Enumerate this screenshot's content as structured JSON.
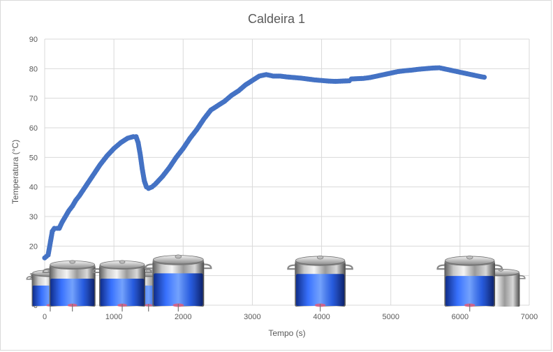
{
  "chart_data": {
    "type": "scatter",
    "title": "Caldeira 1",
    "xlabel": "Tempo (s)",
    "ylabel": "Temperatura (°C)",
    "xlim": [
      0,
      7000
    ],
    "ylim": [
      0,
      90
    ],
    "xticks": [
      "0",
      "1000",
      "2000",
      "3000",
      "4000",
      "5000",
      "6000",
      "7000"
    ],
    "yticks": [
      "0",
      "10",
      "20",
      "30",
      "40",
      "50",
      "60",
      "70",
      "80",
      "90"
    ],
    "grid": true,
    "legend": "none",
    "marker_color": "#4472c4",
    "series": [
      {
        "points": [
          [
            0,
            16
          ],
          [
            50,
            17
          ],
          [
            80,
            21
          ],
          [
            110,
            25
          ],
          [
            140,
            26
          ],
          [
            180,
            26
          ],
          [
            210,
            26
          ],
          [
            250,
            28
          ],
          [
            300,
            30
          ],
          [
            350,
            32
          ],
          [
            400,
            33.5
          ],
          [
            450,
            35.5
          ],
          [
            500,
            37
          ],
          [
            600,
            40.5
          ],
          [
            700,
            44
          ],
          [
            800,
            47.5
          ],
          [
            900,
            50.5
          ],
          [
            1000,
            53
          ],
          [
            1100,
            55
          ],
          [
            1200,
            56.5
          ],
          [
            1280,
            57
          ],
          [
            1320,
            57
          ],
          [
            1350,
            55
          ],
          [
            1380,
            51
          ],
          [
            1410,
            46
          ],
          [
            1440,
            42
          ],
          [
            1470,
            40
          ],
          [
            1500,
            39.5
          ],
          [
            1550,
            40
          ],
          [
            1600,
            41
          ],
          [
            1700,
            43.5
          ],
          [
            1800,
            46.5
          ],
          [
            1900,
            50
          ],
          [
            2000,
            53
          ],
          [
            2100,
            56.5
          ],
          [
            2200,
            59.5
          ],
          [
            2300,
            63
          ],
          [
            2400,
            66
          ],
          [
            2500,
            67.5
          ],
          [
            2600,
            69
          ],
          [
            2700,
            71
          ],
          [
            2800,
            72.5
          ],
          [
            2900,
            74.5
          ],
          [
            3000,
            76
          ],
          [
            3100,
            77.5
          ],
          [
            3200,
            78
          ],
          [
            3300,
            77.5
          ],
          [
            3400,
            77.5
          ],
          [
            3500,
            77.2
          ],
          [
            3600,
            77
          ],
          [
            3700,
            76.8
          ],
          [
            3800,
            76.5
          ],
          [
            3900,
            76.2
          ],
          [
            4000,
            76
          ],
          [
            4100,
            75.8
          ],
          [
            4200,
            75.7
          ],
          [
            4300,
            75.8
          ],
          [
            4400,
            75.9
          ],
          [
            4430,
            76.5
          ],
          [
            4500,
            76.6
          ],
          [
            4600,
            76.7
          ],
          [
            4700,
            77
          ],
          [
            4800,
            77.5
          ],
          [
            4900,
            78
          ],
          [
            5000,
            78.5
          ],
          [
            5100,
            79
          ],
          [
            5200,
            79.3
          ],
          [
            5300,
            79.5
          ],
          [
            5400,
            79.8
          ],
          [
            5500,
            80
          ],
          [
            5600,
            80.2
          ],
          [
            5700,
            80.3
          ],
          [
            5800,
            79.8
          ],
          [
            5900,
            79.3
          ],
          [
            6000,
            78.8
          ],
          [
            6100,
            78.3
          ],
          [
            6200,
            77.8
          ],
          [
            6300,
            77.3
          ],
          [
            6350,
            77.1
          ]
        ]
      }
    ],
    "pot_illustrations": [
      {
        "x": 80,
        "y": 10,
        "scale": 0.8,
        "fill": 0.7
      },
      {
        "x": 400,
        "y": 11,
        "scale": 1.0,
        "fill": 0.75
      },
      {
        "x": 1120,
        "y": 11,
        "scale": 1.0,
        "fill": 0.75
      },
      {
        "x": 1500,
        "y": 10,
        "scale": 0.8,
        "fill": 0.7
      },
      {
        "x": 1930,
        "y": 12,
        "scale": 1.12,
        "fill": 0.8
      },
      {
        "x": 3980,
        "y": 12,
        "scale": 1.1,
        "fill": 0.8
      },
      {
        "x": 6140,
        "y": 12,
        "scale": 1.1,
        "fill": 0.75
      },
      {
        "x": 6590,
        "y": 10,
        "scale": 0.82,
        "fill": 0
      }
    ]
  }
}
